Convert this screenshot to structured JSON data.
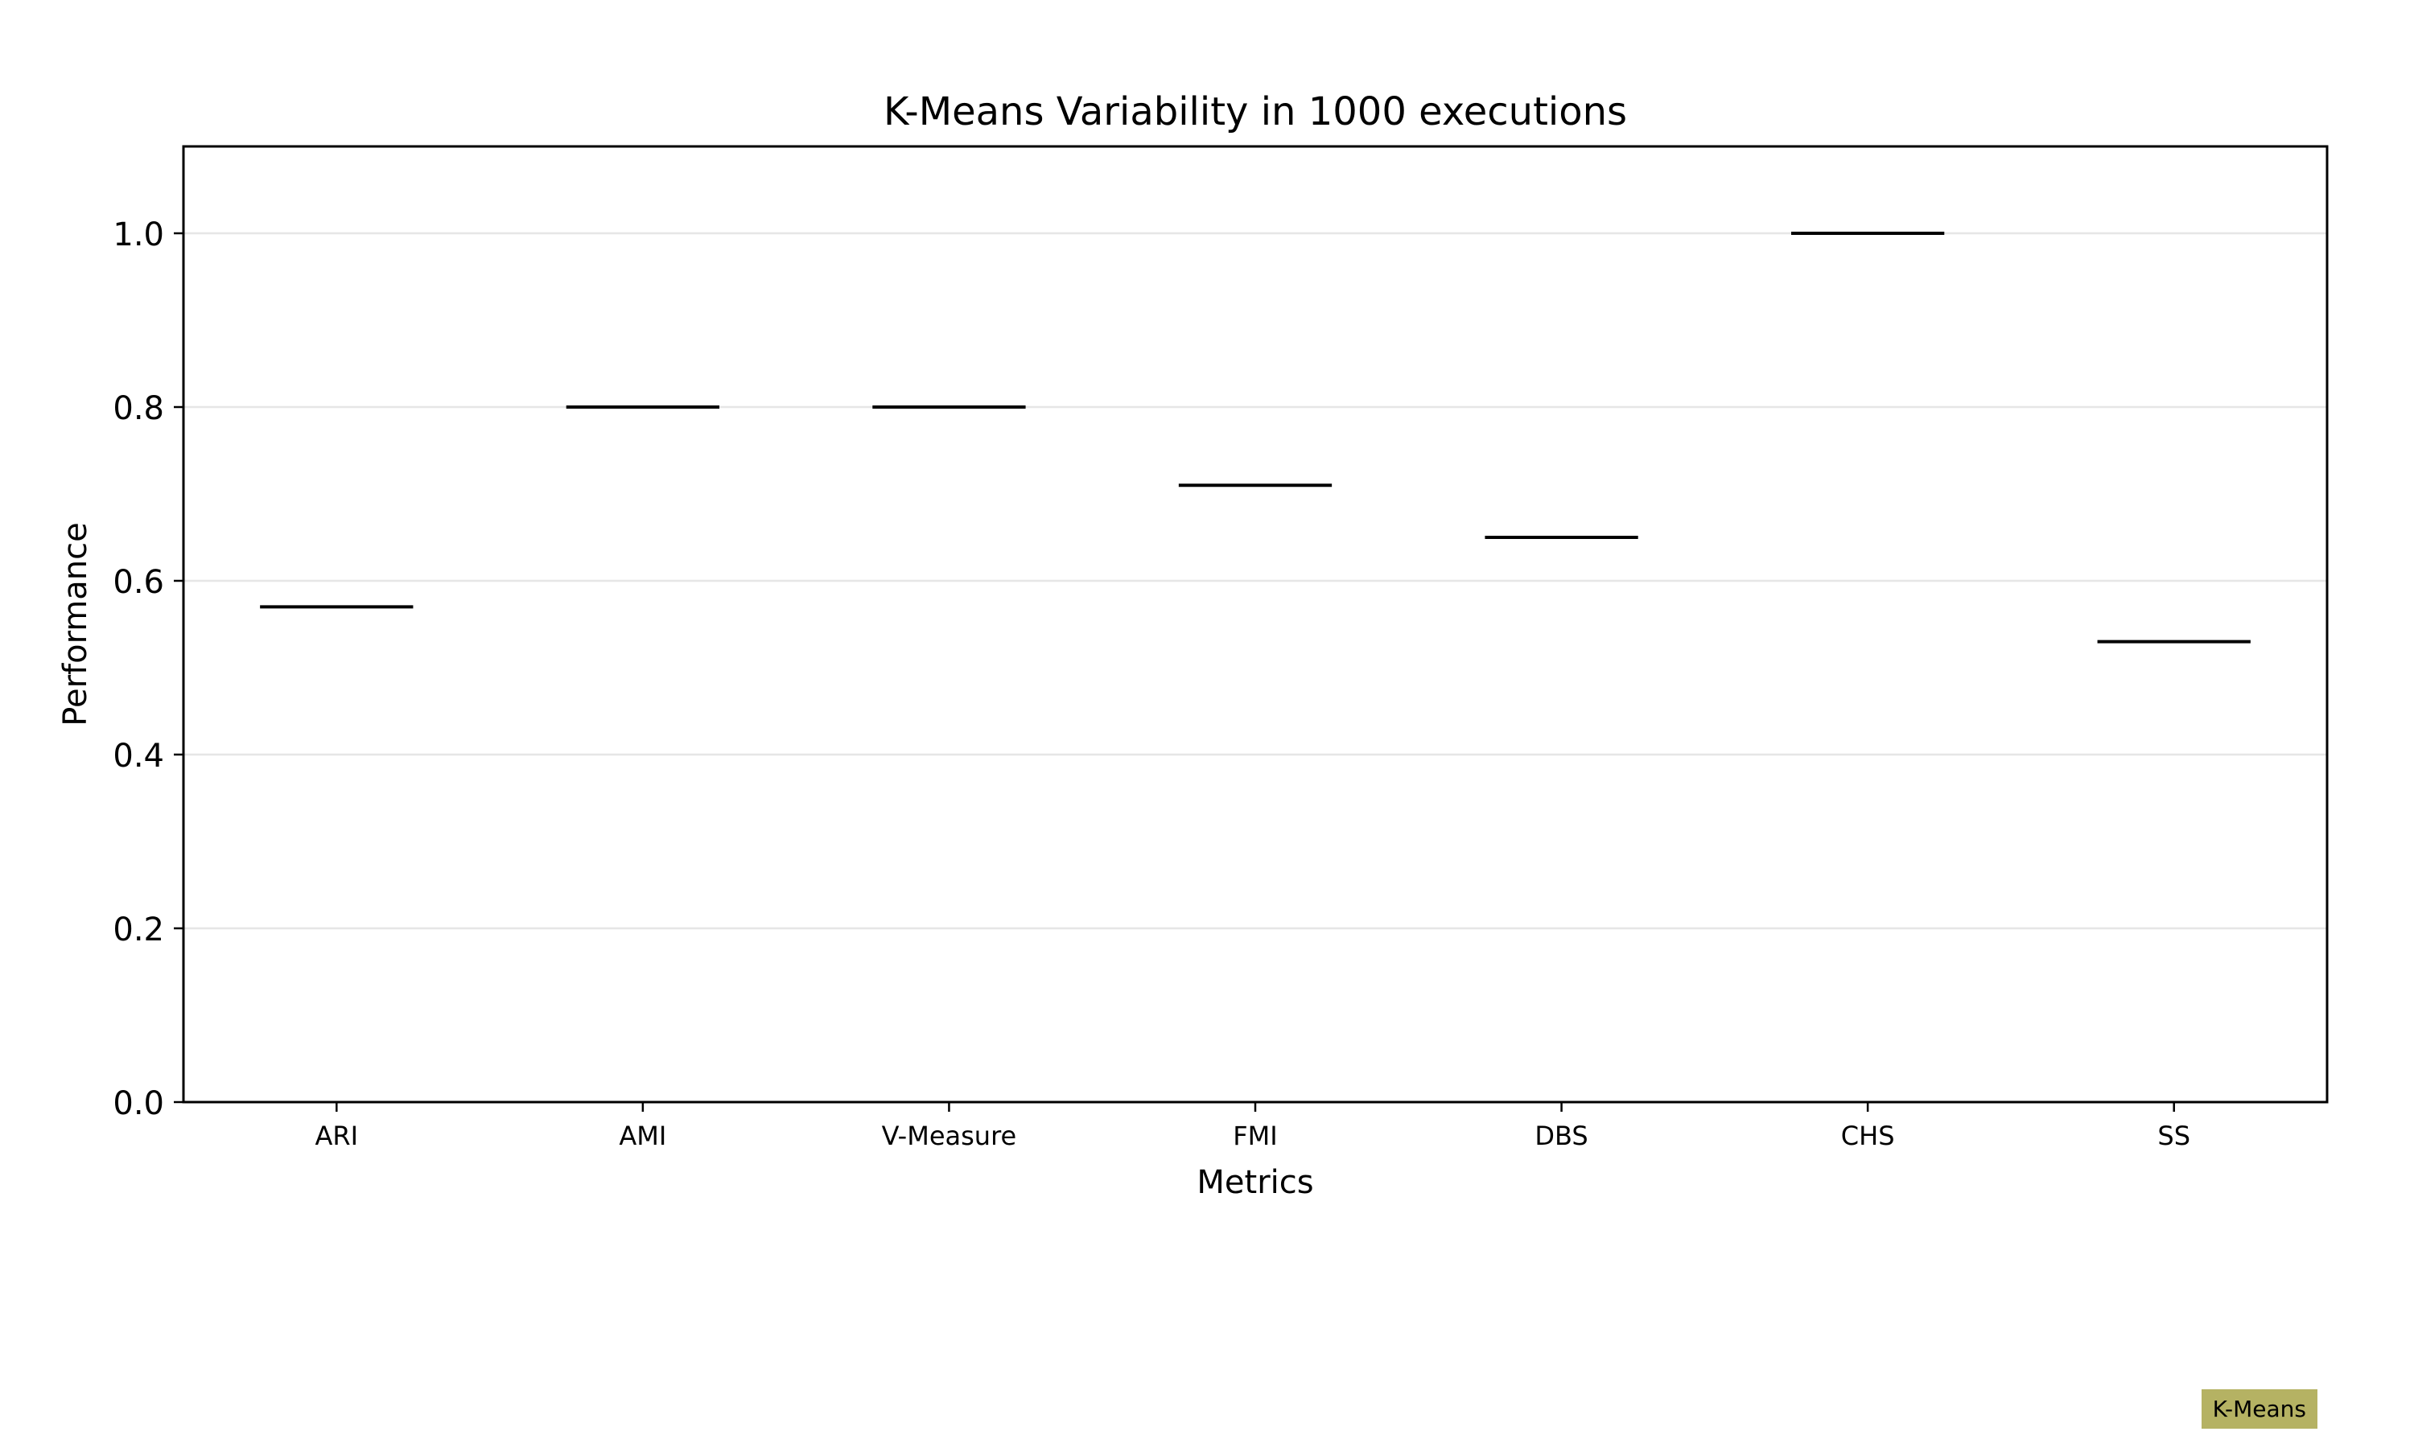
{
  "chart_data": {
    "type": "box",
    "title": "K-Means Variability in 1000 executions",
    "xlabel": "Metrics",
    "ylabel": "Performance",
    "categories": [
      "ARI",
      "AMI",
      "V-Measure",
      "FMI",
      "DBS",
      "CHS",
      "SS"
    ],
    "series": [
      {
        "name": "K-Means",
        "color": "#b5b263",
        "values": [
          0.57,
          0.8,
          0.8,
          0.71,
          0.65,
          1.0,
          0.53
        ]
      }
    ],
    "ylim": [
      0.0,
      1.1
    ],
    "yticks": [
      "0.0",
      "0.2",
      "0.4",
      "0.6",
      "0.8",
      "1.0"
    ],
    "grid": "y",
    "legend_position": "bottom-right"
  }
}
